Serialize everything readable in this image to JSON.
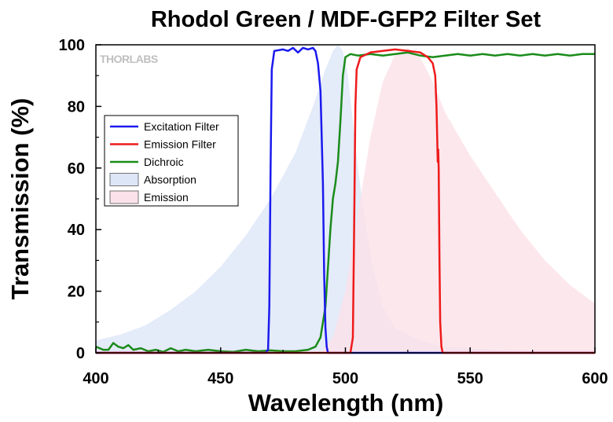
{
  "watermark": "THORLABS",
  "chart_data": {
    "type": "area",
    "title": "Rhodol Green / MDF-GFP2 Filter Set",
    "xlabel": "Wavelength (nm)",
    "ylabel": "Transmission (%)",
    "xlim": [
      400,
      600
    ],
    "ylim": [
      0,
      100
    ],
    "xticks": [
      400,
      450,
      500,
      550,
      600
    ],
    "yticks": [
      0,
      20,
      40,
      60,
      80,
      100
    ],
    "grid": false,
    "legend_position": "center-left",
    "series": [
      {
        "name": "Excitation Filter",
        "kind": "line",
        "color": "#1a1aee",
        "points": [
          [
            400,
            0
          ],
          [
            468,
            0
          ],
          [
            469,
            1
          ],
          [
            469.5,
            15
          ],
          [
            470,
            60
          ],
          [
            470.5,
            92
          ],
          [
            471.5,
            98
          ],
          [
            475,
            98.5
          ],
          [
            477,
            98
          ],
          [
            479,
            99
          ],
          [
            481,
            97.5
          ],
          [
            483,
            99
          ],
          [
            485,
            98.5
          ],
          [
            487,
            99
          ],
          [
            488,
            98
          ],
          [
            489,
            94
          ],
          [
            490,
            85
          ],
          [
            491,
            55
          ],
          [
            491.5,
            25
          ],
          [
            492,
            8
          ],
          [
            492.5,
            2
          ],
          [
            493,
            0
          ],
          [
            600,
            0
          ]
        ]
      },
      {
        "name": "Emission Filter",
        "kind": "line",
        "color": "#ee1a1a",
        "points": [
          [
            400,
            0
          ],
          [
            502,
            0
          ],
          [
            503,
            5
          ],
          [
            503.5,
            40
          ],
          [
            504,
            80
          ],
          [
            504.5,
            92
          ],
          [
            506,
            96
          ],
          [
            510,
            97.5
          ],
          [
            515,
            98
          ],
          [
            520,
            98.5
          ],
          [
            525,
            98
          ],
          [
            530,
            97.5
          ],
          [
            533,
            96
          ],
          [
            535,
            94
          ],
          [
            536,
            90
          ],
          [
            536.5,
            80
          ],
          [
            536.8,
            70
          ],
          [
            537,
            62
          ],
          [
            537.2,
            66
          ],
          [
            537.4,
            60
          ],
          [
            537.7,
            30
          ],
          [
            538,
            10
          ],
          [
            538.5,
            2
          ],
          [
            539,
            0
          ],
          [
            600,
            0
          ]
        ]
      },
      {
        "name": "Dichroic",
        "kind": "line",
        "color": "#1a8c1a",
        "points": [
          [
            400,
            2
          ],
          [
            403,
            1
          ],
          [
            405,
            1
          ],
          [
            407,
            3.2
          ],
          [
            409,
            2
          ],
          [
            411,
            1.5
          ],
          [
            413,
            2.5
          ],
          [
            415,
            1
          ],
          [
            418,
            1.5
          ],
          [
            421,
            0.5
          ],
          [
            424,
            1
          ],
          [
            427,
            0.3
          ],
          [
            430,
            1.5
          ],
          [
            433,
            0.5
          ],
          [
            436,
            1
          ],
          [
            440,
            0.5
          ],
          [
            445,
            1
          ],
          [
            450,
            0.5
          ],
          [
            455,
            0.3
          ],
          [
            460,
            1
          ],
          [
            465,
            0.5
          ],
          [
            470,
            0.8
          ],
          [
            475,
            0.5
          ],
          [
            480,
            0.5
          ],
          [
            485,
            1
          ],
          [
            488,
            2
          ],
          [
            490,
            5
          ],
          [
            492,
            15
          ],
          [
            494,
            40
          ],
          [
            495,
            50
          ],
          [
            496,
            55
          ],
          [
            497,
            62
          ],
          [
            498,
            75
          ],
          [
            499,
            90
          ],
          [
            500,
            96
          ],
          [
            502,
            97
          ],
          [
            505,
            96.5
          ],
          [
            510,
            97
          ],
          [
            515,
            96.5
          ],
          [
            520,
            97
          ],
          [
            525,
            97.5
          ],
          [
            530,
            96.5
          ],
          [
            535,
            96
          ],
          [
            540,
            96.5
          ],
          [
            545,
            97
          ],
          [
            550,
            96.5
          ],
          [
            555,
            97
          ],
          [
            560,
            96.5
          ],
          [
            565,
            97
          ],
          [
            570,
            96.5
          ],
          [
            575,
            97
          ],
          [
            580,
            96.5
          ],
          [
            585,
            97
          ],
          [
            590,
            96.5
          ],
          [
            595,
            97
          ],
          [
            600,
            97
          ]
        ]
      },
      {
        "name": "Absorption",
        "kind": "area",
        "color": "#dde6f7",
        "points": [
          [
            400,
            4
          ],
          [
            410,
            6
          ],
          [
            420,
            9
          ],
          [
            430,
            14
          ],
          [
            440,
            20
          ],
          [
            450,
            28
          ],
          [
            460,
            38
          ],
          [
            470,
            50
          ],
          [
            480,
            65
          ],
          [
            487,
            80
          ],
          [
            492,
            92
          ],
          [
            495,
            98
          ],
          [
            497,
            100
          ],
          [
            499,
            98
          ],
          [
            501,
            90
          ],
          [
            503,
            75
          ],
          [
            505,
            60
          ],
          [
            508,
            42
          ],
          [
            511,
            28
          ],
          [
            515,
            15
          ],
          [
            520,
            8
          ],
          [
            530,
            4
          ],
          [
            540,
            2
          ],
          [
            560,
            1
          ],
          [
            570,
            0
          ],
          [
            600,
            0
          ]
        ]
      },
      {
        "name": "Emission",
        "kind": "area",
        "color": "#fbe1e9",
        "points": [
          [
            490,
            0
          ],
          [
            495,
            5
          ],
          [
            500,
            20
          ],
          [
            505,
            45
          ],
          [
            510,
            70
          ],
          [
            515,
            88
          ],
          [
            520,
            97
          ],
          [
            525,
            99
          ],
          [
            530,
            96
          ],
          [
            535,
            88
          ],
          [
            540,
            78
          ],
          [
            550,
            64
          ],
          [
            560,
            52
          ],
          [
            570,
            40
          ],
          [
            580,
            30
          ],
          [
            590,
            22
          ],
          [
            600,
            16
          ]
        ]
      }
    ]
  }
}
